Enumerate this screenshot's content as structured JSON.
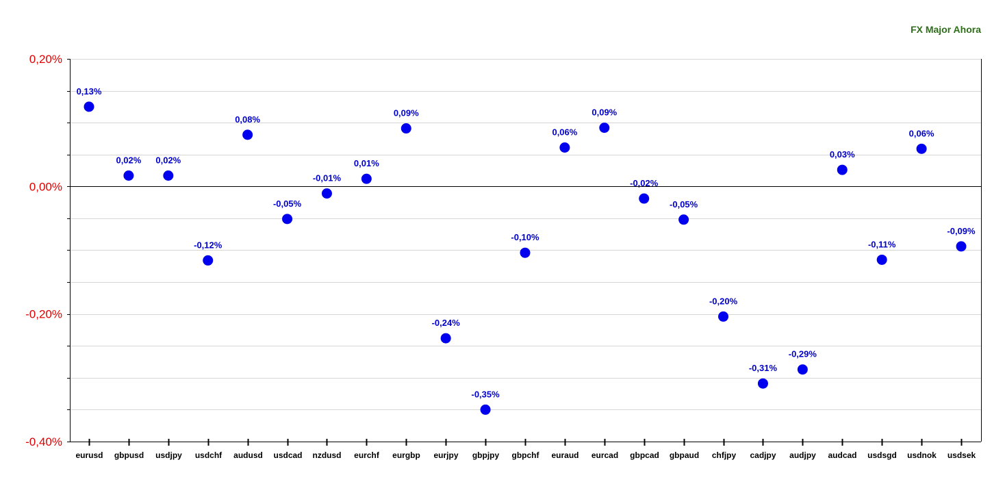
{
  "colors": {
    "point": "#0000ee",
    "label": "#0000cc",
    "tick_label": "#e00000",
    "title": "#2e6e1a",
    "grid": "#d6d6d6",
    "axis": "#000000"
  },
  "chart_data": {
    "type": "scatter",
    "title": "FX Major Ahora",
    "xlabel": "",
    "ylabel": "",
    "ylim": [
      -0.4,
      0.2
    ],
    "y_ticks": [
      0.2,
      0.0,
      -0.2,
      -0.4
    ],
    "y_tick_labels": [
      "0,20%",
      "0,00%",
      "-0,20%",
      "-0,40%"
    ],
    "grid": true,
    "legend": "none",
    "categories": [
      "eurusd",
      "gbpusd",
      "usdjpy",
      "usdchf",
      "audusd",
      "usdcad",
      "nzdusd",
      "eurchf",
      "eurgbp",
      "eurjpy",
      "gbpjpy",
      "gbpchf",
      "euraud",
      "eurcad",
      "gbpcad",
      "gbpaud",
      "chfjpy",
      "cadjpy",
      "audjpy",
      "audcad",
      "usdsgd",
      "usdnok",
      "usdsek"
    ],
    "values": [
      0.125,
      0.017,
      0.017,
      -0.116,
      0.081,
      -0.051,
      -0.011,
      0.012,
      0.091,
      -0.238,
      -0.35,
      -0.104,
      0.061,
      0.092,
      -0.019,
      -0.052,
      -0.204,
      -0.309,
      -0.287,
      0.026,
      -0.115,
      0.059,
      -0.094
    ],
    "data_labels": [
      "0,13%",
      "0,02%",
      "0,02%",
      "-0,12%",
      "0,08%",
      "-0,05%",
      "-0,01%",
      "0,01%",
      "0,09%",
      "-0,24%",
      "-0,35%",
      "-0,10%",
      "0,06%",
      "0,09%",
      "-0,02%",
      "-0,05%",
      "-0,20%",
      "-0,31%",
      "-0,29%",
      "0,03%",
      "-0,11%",
      "0,06%",
      "-0,09%"
    ]
  }
}
